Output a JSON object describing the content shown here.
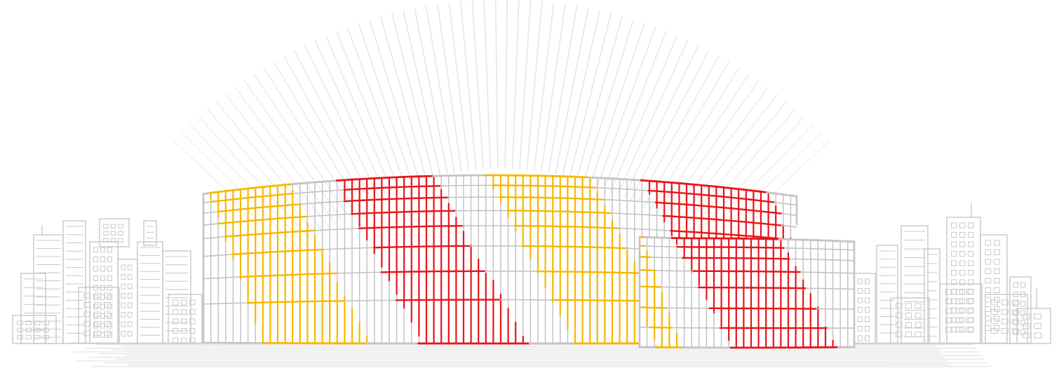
{
  "illustration": {
    "colors": {
      "background": "#ffffff",
      "structure": "#c4c4c4",
      "rays": "#e6e6e6",
      "city": "#c8c8c8",
      "ground": "#e4e4e4",
      "accent_yellow": "#f5b800",
      "accent_red": "#e8141b"
    },
    "icons": [
      "stadium-illustration",
      "city-skyline-left",
      "city-skyline-right",
      "light-rays"
    ]
  }
}
